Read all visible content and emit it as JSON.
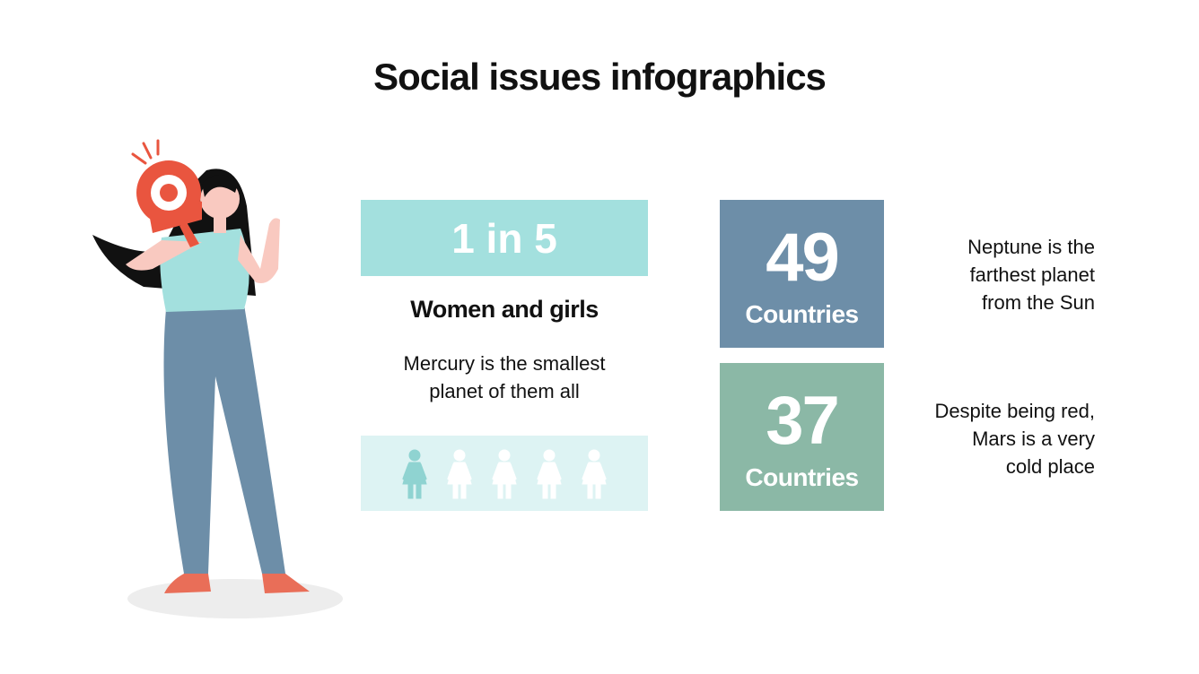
{
  "title": "Social issues infographics",
  "highlight": {
    "stat": "1 in 5",
    "heading": "Women and girls",
    "description": [
      "Mercury is the smallest",
      "planet of them all"
    ]
  },
  "stats": [
    {
      "number": 49,
      "label": "Countries",
      "description": [
        "Neptune is the",
        "farthest planet",
        "from the Sun"
      ]
    },
    {
      "number": 37,
      "label": "Countries",
      "description": [
        "Despite being red,",
        "Mars is a very",
        "cold place"
      ]
    }
  ]
}
